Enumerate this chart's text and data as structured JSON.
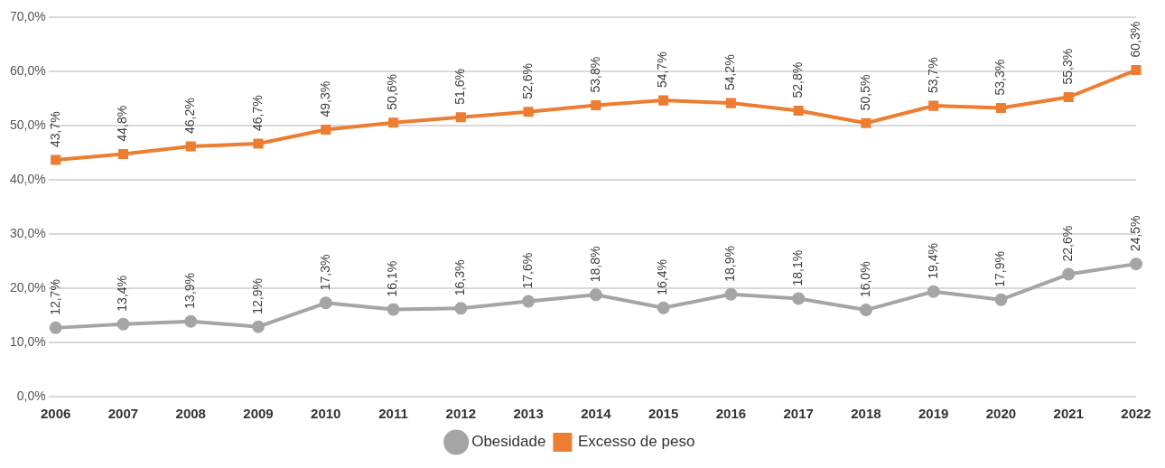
{
  "chart_data": {
    "type": "line",
    "categories": [
      "2006",
      "2007",
      "2008",
      "2009",
      "2010",
      "2011",
      "2012",
      "2013",
      "2014",
      "2015",
      "2016",
      "2017",
      "2018",
      "2019",
      "2020",
      "2021",
      "2022"
    ],
    "series": [
      {
        "name": "Obesidade",
        "color": "#a5a5a5",
        "marker": "circle",
        "values": [
          12.7,
          13.4,
          13.9,
          12.9,
          17.3,
          16.1,
          16.3,
          17.6,
          18.8,
          16.4,
          18.9,
          18.1,
          16.0,
          19.4,
          17.9,
          22.6,
          24.5
        ],
        "value_labels": [
          "12,7%",
          "13,4%",
          "13,9%",
          "12,9%",
          "17,3%",
          "16,1%",
          "16,3%",
          "17,6%",
          "18,8%",
          "16,4%",
          "18,9%",
          "18,1%",
          "16,0%",
          "19,4%",
          "17,9%",
          "22,6%",
          "24,5%"
        ]
      },
      {
        "name": "Excesso de peso",
        "color": "#ed7d31",
        "marker": "square",
        "values": [
          43.7,
          44.8,
          46.2,
          46.7,
          49.3,
          50.6,
          51.6,
          52.6,
          53.8,
          54.7,
          54.2,
          52.8,
          50.5,
          53.7,
          53.3,
          55.3,
          60.3
        ],
        "value_labels": [
          "43,7%",
          "44,8%",
          "46,2%",
          "46,7%",
          "49,3%",
          "50,6%",
          "51,6%",
          "52,6%",
          "53,8%",
          "54,7%",
          "54,2%",
          "52,8%",
          "50,5%",
          "53,7%",
          "53,3%",
          "55,3%",
          "60,3%"
        ]
      }
    ],
    "ylim": [
      0,
      70
    ],
    "yticks": [
      {
        "value": 0,
        "label": "0,0%"
      },
      {
        "value": 10,
        "label": "10,0%"
      },
      {
        "value": 20,
        "label": "20,0%"
      },
      {
        "value": 30,
        "label": "30,0%"
      },
      {
        "value": 40,
        "label": "40,0%"
      },
      {
        "value": 50,
        "label": "50,0%"
      },
      {
        "value": 60,
        "label": "60,0%"
      },
      {
        "value": 70,
        "label": "70,0%"
      }
    ],
    "grid": "y",
    "legend": "bottom"
  }
}
